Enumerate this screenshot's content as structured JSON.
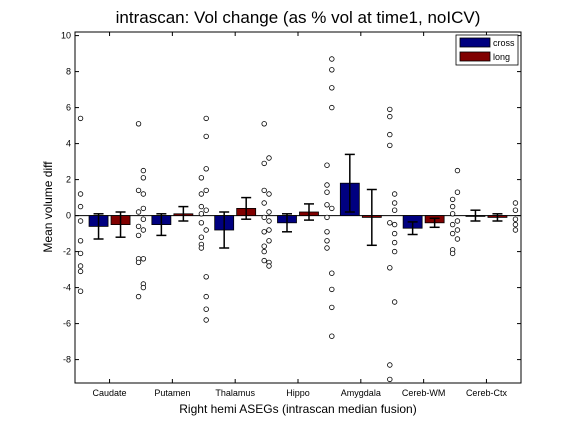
{
  "chart_data": {
    "type": "bar",
    "title": "intrascan: Vol change (as % vol at time1, noICV)",
    "xlabel": "Right hemi ASEGs (intrascan median fusion)",
    "ylabel": "Mean volume diff",
    "ylim": [
      -9.3,
      10.2
    ],
    "yticks": [
      -8,
      -6,
      -4,
      -2,
      0,
      2,
      4,
      6,
      8,
      10
    ],
    "categories": [
      "Caudate",
      "Putamen",
      "Thalamus",
      "Hippo",
      "Amygdala",
      "Cereb-WM",
      "Cereb-Ctx"
    ],
    "legend_position": "top-right",
    "grid": false,
    "series": [
      {
        "name": "cross",
        "color": "#000080",
        "values": [
          -0.6,
          -0.5,
          -0.8,
          -0.4,
          1.8,
          -0.7,
          0.0
        ],
        "error": [
          0.7,
          0.6,
          1.0,
          0.5,
          1.6,
          0.35,
          0.3
        ],
        "points": [
          [
            5.4,
            1.2,
            0.5,
            -0.3,
            -1.4,
            -2.1,
            -2.8,
            -3.1,
            -4.2
          ],
          [
            2.5,
            2.1,
            1.2,
            0.4,
            -0.2,
            -0.8,
            -2.4,
            -3.8,
            -4.0
          ],
          [
            5.4,
            4.4,
            2.6,
            1.4,
            0.3,
            -0.8,
            -3.4,
            -4.5,
            -5.2,
            -5.8
          ],
          [
            3.2,
            1.2,
            0.2,
            -0.3,
            -0.8,
            -1.4,
            -2.6,
            -2.8
          ],
          [
            8.7,
            8.1,
            7.1,
            6.0,
            0.4,
            -3.2,
            -4.1,
            -5.1,
            -6.7
          ],
          [
            1.2,
            0.7,
            0.3,
            -0.5,
            -1.0,
            -1.5,
            -2.0,
            -4.8
          ],
          [
            2.5,
            1.3,
            -0.3,
            -0.8,
            -1.3
          ]
        ]
      },
      {
        "name": "long",
        "color": "#800000",
        "values": [
          -0.5,
          0.1,
          0.4,
          0.2,
          -0.1,
          -0.4,
          -0.1
        ],
        "error": [
          0.7,
          0.4,
          0.6,
          0.45,
          1.55,
          0.25,
          0.2
        ],
        "points": [
          [
            5.1,
            1.4,
            0.2,
            -0.6,
            -1.1,
            -2.4,
            -2.6,
            -4.5
          ],
          [
            2.1,
            1.2,
            0.5,
            0.1,
            -0.4,
            -1.2,
            -1.6,
            -1.8
          ],
          [
            5.1,
            2.9,
            1.4,
            0.7,
            -0.1,
            -0.9,
            -1.7,
            -2.0,
            -2.5
          ],
          [
            2.8,
            1.7,
            1.3,
            0.6,
            -0.1,
            -0.9,
            -1.4,
            -1.8
          ],
          [
            5.9,
            5.5,
            4.5,
            3.9,
            -0.4,
            -2.9,
            -8.3,
            -9.1
          ],
          [
            0.9,
            0.5,
            0.1,
            -0.5,
            -1.0,
            -1.9,
            -2.1
          ],
          [
            0.7,
            0.3,
            -0.2,
            -0.5,
            -0.8
          ]
        ]
      }
    ]
  }
}
